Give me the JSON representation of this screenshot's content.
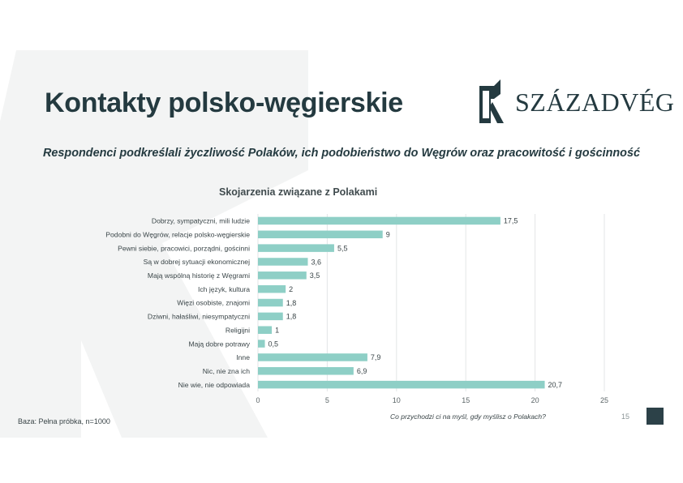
{
  "slide": {
    "title": "Kontakty polsko-węgierskie",
    "subtitle": "Respondenci podkreślali życzliwość Polaków, ich podobieństwo do Węgrów oraz pracowitość i gościnność",
    "logo_text": "SZÁZADVÉG",
    "base_note": "Baza: Pełna próbka, n=1000",
    "question": "Co przychodzi ci na myśl, gdy myślisz o Polakach?",
    "page_number": "15"
  },
  "colors": {
    "bar": "#8ecfc6",
    "text": "#243a40",
    "grid": "#e3e6e7",
    "accent": "#2c4148"
  },
  "chart_data": {
    "type": "bar",
    "orientation": "horizontal",
    "title": "Skojarzenia związane z Polakami",
    "categories": [
      "Dobrzy, sympatyczni, mili ludzie",
      "Podobni do Węgrów, relacje polsko-węgierskie",
      "Pewni siebie, pracowici, porządni, gościnni",
      "Są w dobrej sytuacji ekonomicznej",
      "Mają wspólną historię z Węgrami",
      "Ich język, kultura",
      "Więzi osobiste, znajomi",
      "Dziwni, hałaśliwi, niesympatyczni",
      "Religijni",
      "Mają dobre potrawy",
      "Inne",
      "Nic, nie zna ich",
      "Nie wie, nie odpowiada"
    ],
    "values": [
      17.5,
      9,
      5.5,
      3.6,
      3.5,
      2,
      1.8,
      1.8,
      1,
      0.5,
      7.9,
      6.9,
      20.7
    ],
    "value_labels": [
      "17,5",
      "9",
      "5,5",
      "3,6",
      "3,5",
      "2",
      "1,8",
      "1,8",
      "1",
      "0,5",
      "7,9",
      "6,9",
      "20,7"
    ],
    "xlim": [
      0,
      25
    ],
    "xticks": [
      0,
      5,
      10,
      15,
      20,
      25
    ],
    "grid": true,
    "legend": "none"
  }
}
